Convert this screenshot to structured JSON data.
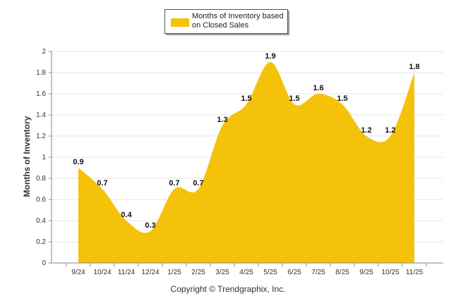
{
  "legend": {
    "label": "Months of Inventory based on Closed Sales"
  },
  "copyright": "Copyright © Trendgraphix, Inc.",
  "colors": {
    "area": "#F5C20A",
    "grid": "#e6e6e6",
    "axis": "#888888"
  },
  "chart_data": {
    "type": "area",
    "title": "",
    "xlabel": "",
    "ylabel": "Months of Inventory",
    "categories": [
      "9/24",
      "10/24",
      "11/24",
      "12/24",
      "1/25",
      "2/25",
      "3/25",
      "4/25",
      "5/25",
      "6/25",
      "7/25",
      "8/25",
      "9/25",
      "10/25",
      "11/25"
    ],
    "series": [
      {
        "name": "Months of Inventory based on Closed Sales",
        "values": [
          0.9,
          0.7,
          0.4,
          0.3,
          0.7,
          0.7,
          1.3,
          1.5,
          1.9,
          1.5,
          1.6,
          1.5,
          1.2,
          1.2,
          1.8
        ]
      }
    ],
    "ylim": [
      0,
      2
    ],
    "yticks": [
      "0",
      "0.2",
      "0.4",
      "0.6",
      "0.8",
      "1",
      "1.2",
      "1.4",
      "1.6",
      "1.8",
      "2"
    ],
    "grid": true,
    "legend_position": "top-center"
  }
}
